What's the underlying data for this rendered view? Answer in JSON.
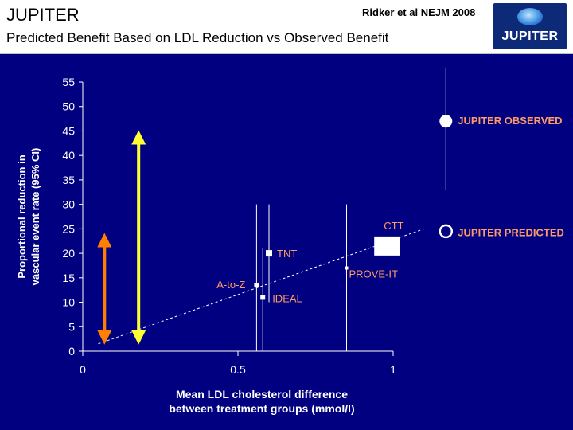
{
  "header": {
    "title": "JUPITER",
    "citation": "Ridker et al NEJM 2008",
    "subtitle": "Predicted Benefit Based on LDL Reduction vs Observed Benefit",
    "logo_text": "JUPITER"
  },
  "colors": {
    "background": "#000080",
    "text": "#ffffff",
    "annotation": "#ff9966",
    "yellow_arrow": "#ffff33",
    "orange_arrow": "#ff7f00"
  },
  "chart_data": {
    "type": "scatter",
    "title": "",
    "xlabel": "Mean LDL cholesterol difference between treatment groups (mmol/l)",
    "xlabel_lines": [
      "Mean LDL cholesterol difference",
      "between treatment groups (mmol/l)"
    ],
    "ylabel": "Proportional reduction in vascular event rate (95% CI)",
    "ylabel_lines": [
      "Proportional reduction in",
      "vascular event rate (95% CI)"
    ],
    "xlim": [
      0,
      1.0
    ],
    "ylim": [
      0,
      55
    ],
    "xticks": [
      0,
      0.5,
      1
    ],
    "xtick_labels": [
      "0",
      "0.5",
      "1"
    ],
    "yticks": [
      0,
      5,
      10,
      15,
      20,
      25,
      30,
      35,
      40,
      45,
      50,
      55
    ],
    "grid": false,
    "points": [
      {
        "name": "A-to-Z",
        "x": 0.56,
        "y": 13.5,
        "ci": [
          0,
          30
        ],
        "marker": "square-small"
      },
      {
        "name": "IDEAL",
        "x": 0.58,
        "y": 11,
        "ci": [
          0,
          21
        ],
        "marker": "square-small"
      },
      {
        "name": "TNT",
        "x": 0.6,
        "y": 20,
        "ci": [
          10,
          30
        ],
        "marker": "square"
      },
      {
        "name": "PROVE-IT",
        "x": 0.85,
        "y": 17,
        "ci": [
          0,
          30
        ],
        "marker": "square-tiny"
      },
      {
        "name": "CTT",
        "x": 0.98,
        "y": 21.5,
        "ci": [
          20,
          23
        ],
        "marker": "square-large"
      },
      {
        "name": "JUPITER OBSERVED",
        "x": 1.17,
        "y": 47,
        "ci": [
          33,
          58
        ],
        "marker": "circle-filled"
      },
      {
        "name": "JUPITER PREDICTED",
        "x": 1.17,
        "y": 24.5,
        "marker": "circle-open"
      }
    ],
    "trend_line": {
      "x": [
        0.05,
        1.1
      ],
      "y": [
        1.5,
        25
      ]
    },
    "arrows": [
      {
        "name": "yellow",
        "x": 0.18,
        "y_range": [
          1.5,
          45
        ]
      },
      {
        "name": "orange",
        "x": 0.07,
        "y_range": [
          1.5,
          24
        ]
      }
    ]
  }
}
